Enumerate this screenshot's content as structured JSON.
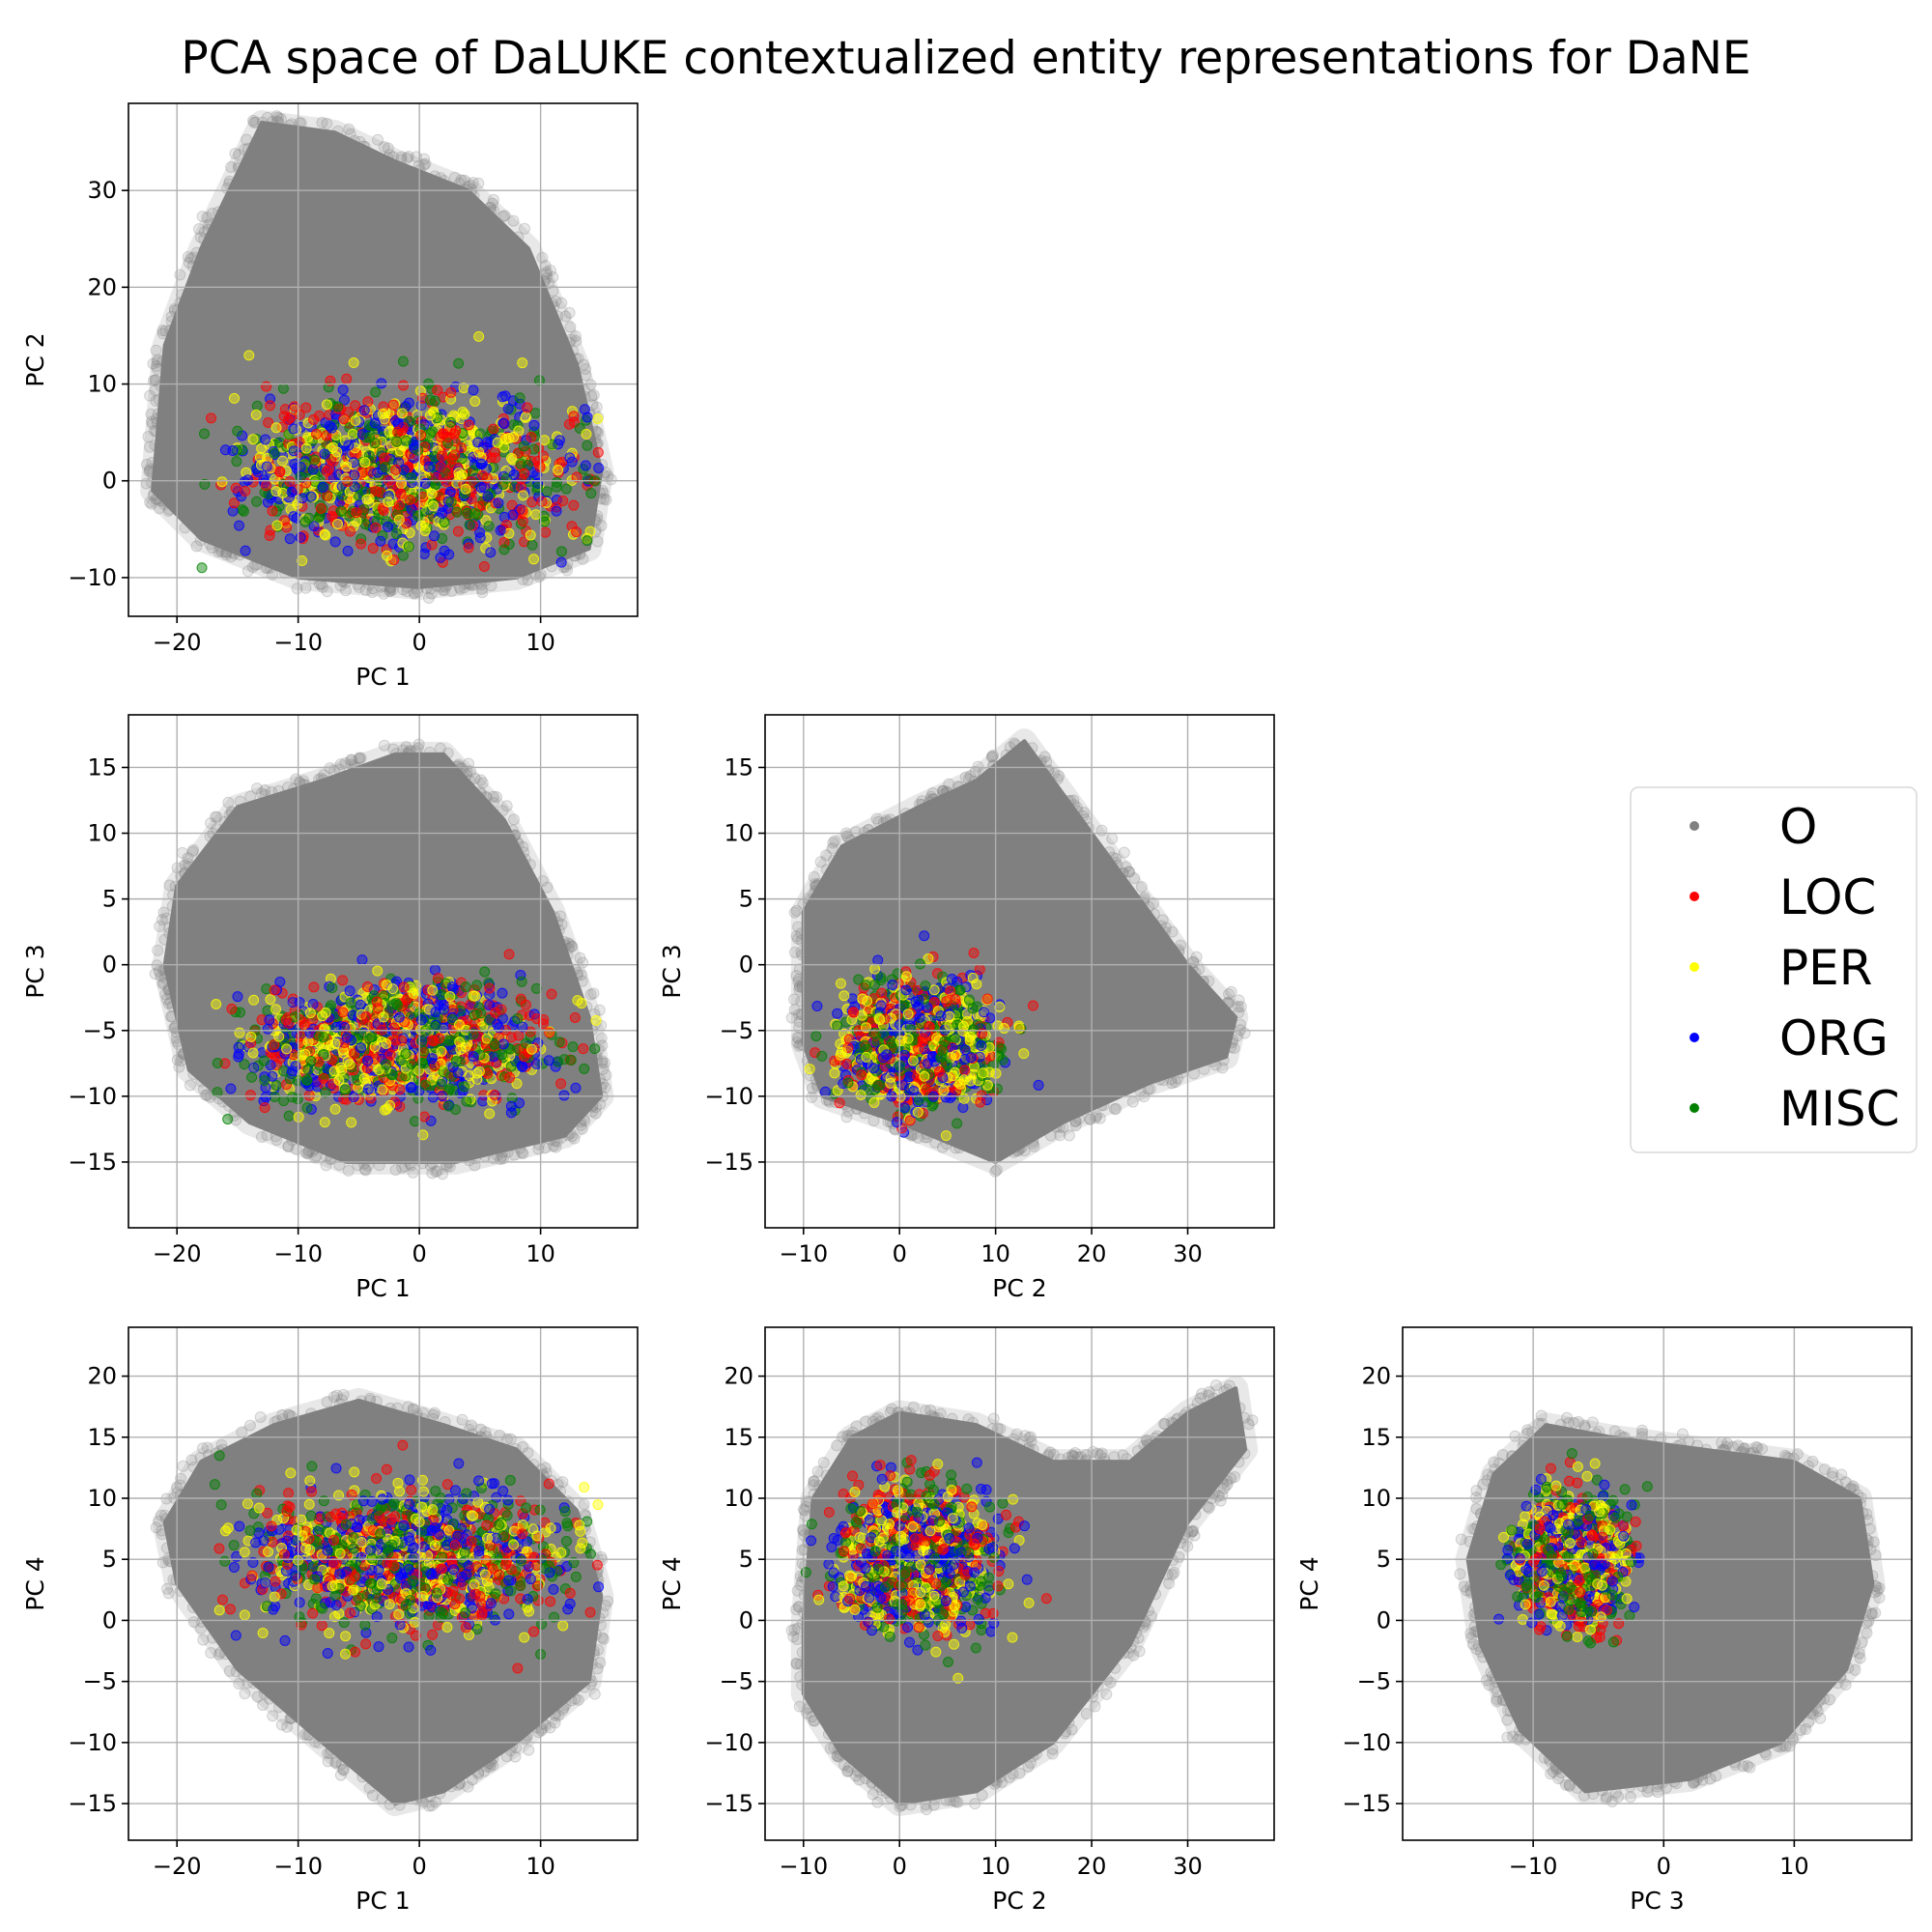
{
  "title": "PCA space of DaLUKE contextualized entity representations for DaNE",
  "colors": {
    "O": "#808080",
    "LOC": "#ff0000",
    "PER": "#ffff00",
    "ORG": "#0000ff",
    "MISC": "#008000",
    "grid": "#b0b0b0"
  },
  "legend": {
    "placement": "right",
    "items": [
      {
        "label": "O",
        "color": "#808080"
      },
      {
        "label": "LOC",
        "color": "#ff0000"
      },
      {
        "label": "PER",
        "color": "#ffff00"
      },
      {
        "label": "ORG",
        "color": "#0000ff"
      },
      {
        "label": "MISC",
        "color": "#008000"
      }
    ]
  },
  "chart_data": [
    {
      "type": "scatter",
      "xlabel": "PC 1",
      "ylabel": "PC 2",
      "xlim": [
        -24,
        18
      ],
      "ylim": [
        -14,
        39
      ],
      "xticks": [
        -20,
        -10,
        0,
        10
      ],
      "yticks": [
        -10,
        0,
        10,
        20,
        30
      ],
      "xtick_labels": [
        "−20",
        "−10",
        "0",
        "10"
      ],
      "ytick_labels": [
        "−10",
        "0",
        "10",
        "20",
        "30"
      ],
      "grid": true,
      "o_hull": [
        [
          -22,
          -1
        ],
        [
          -21,
          14
        ],
        [
          -18,
          24
        ],
        [
          -13,
          37
        ],
        [
          -7,
          36
        ],
        [
          -2,
          33
        ],
        [
          4,
          30
        ],
        [
          9,
          24
        ],
        [
          13,
          12
        ],
        [
          15,
          1
        ],
        [
          14,
          -7
        ],
        [
          8,
          -10
        ],
        [
          0,
          -11
        ],
        [
          -10,
          -10
        ],
        [
          -18,
          -6
        ]
      ],
      "entity_region": {
        "center": [
          -1,
          1
        ],
        "spread": [
          12,
          7
        ],
        "x_range": [
          -18,
          15
        ],
        "y_range": [
          -9,
          24
        ]
      },
      "series": [
        {
          "name": "O",
          "description": "dense cloud of non-entity tokens"
        },
        {
          "name": "LOC"
        },
        {
          "name": "PER"
        },
        {
          "name": "ORG"
        },
        {
          "name": "MISC"
        }
      ]
    },
    {
      "type": "scatter",
      "xlabel": "PC 1",
      "ylabel": "PC 3",
      "xlim": [
        -24,
        18
      ],
      "ylim": [
        -20,
        19
      ],
      "xticks": [
        -20,
        -10,
        0,
        10
      ],
      "yticks": [
        -15,
        -10,
        -5,
        0,
        5,
        10,
        15
      ],
      "xtick_labels": [
        "−20",
        "−10",
        "0",
        "10"
      ],
      "ytick_labels": [
        "−15",
        "−10",
        "−5",
        "0",
        "5",
        "10",
        "15"
      ],
      "grid": true,
      "o_hull": [
        [
          -21,
          0
        ],
        [
          -20,
          6
        ],
        [
          -15,
          12
        ],
        [
          -8,
          14
        ],
        [
          -2,
          16
        ],
        [
          2,
          16
        ],
        [
          7,
          11
        ],
        [
          11,
          4
        ],
        [
          14,
          -4
        ],
        [
          15,
          -10
        ],
        [
          12,
          -13
        ],
        [
          3,
          -15
        ],
        [
          -6,
          -15
        ],
        [
          -14,
          -12
        ],
        [
          -19,
          -8
        ]
      ],
      "entity_region": {
        "center": [
          -2,
          -6
        ],
        "spread": [
          11,
          4
        ],
        "x_range": [
          -17,
          15
        ],
        "y_range": [
          -13,
          4
        ]
      },
      "series": [
        {
          "name": "O"
        },
        {
          "name": "LOC"
        },
        {
          "name": "PER"
        },
        {
          "name": "ORG"
        },
        {
          "name": "MISC"
        }
      ]
    },
    {
      "type": "scatter",
      "xlabel": "PC 2",
      "ylabel": "PC 3",
      "xlim": [
        -14,
        39
      ],
      "ylim": [
        -20,
        19
      ],
      "xticks": [
        -10,
        0,
        10,
        20,
        30
      ],
      "yticks": [
        -15,
        -10,
        -5,
        0,
        5,
        10,
        15
      ],
      "xtick_labels": [
        "−10",
        "0",
        "10",
        "20",
        "30"
      ],
      "ytick_labels": [
        "−15",
        "−10",
        "−5",
        "0",
        "5",
        "10",
        "15"
      ],
      "grid": true,
      "o_hull": [
        [
          -10,
          -6
        ],
        [
          -10,
          4
        ],
        [
          -6,
          9
        ],
        [
          2,
          12
        ],
        [
          8,
          14
        ],
        [
          13,
          17
        ],
        [
          18,
          12
        ],
        [
          24,
          6
        ],
        [
          30,
          0
        ],
        [
          35,
          -4
        ],
        [
          34,
          -7
        ],
        [
          26,
          -9
        ],
        [
          17,
          -12
        ],
        [
          10,
          -15
        ],
        [
          0,
          -12
        ],
        [
          -8,
          -10
        ]
      ],
      "entity_region": {
        "center": [
          2,
          -6
        ],
        "spread": [
          7,
          4
        ],
        "x_range": [
          -10,
          18
        ],
        "y_range": [
          -13,
          3
        ]
      },
      "series": [
        {
          "name": "O"
        },
        {
          "name": "LOC"
        },
        {
          "name": "PER"
        },
        {
          "name": "ORG"
        },
        {
          "name": "MISC"
        }
      ]
    },
    {
      "type": "scatter",
      "xlabel": "PC 1",
      "ylabel": "PC 4",
      "xlim": [
        -24,
        18
      ],
      "ylim": [
        -18,
        24
      ],
      "xticks": [
        -20,
        -10,
        0,
        10
      ],
      "yticks": [
        -15,
        -10,
        -5,
        0,
        5,
        10,
        15,
        20
      ],
      "xtick_labels": [
        "−20",
        "−10",
        "0",
        "10"
      ],
      "ytick_labels": [
        "−15",
        "−10",
        "−5",
        "0",
        "5",
        "10",
        "15",
        "20"
      ],
      "grid": true,
      "o_hull": [
        [
          -21,
          8
        ],
        [
          -18,
          13
        ],
        [
          -12,
          16
        ],
        [
          -5,
          18
        ],
        [
          2,
          16
        ],
        [
          8,
          14
        ],
        [
          13,
          9
        ],
        [
          15,
          2
        ],
        [
          14,
          -5
        ],
        [
          8,
          -10
        ],
        [
          2,
          -14
        ],
        [
          -2,
          -15
        ],
        [
          -8,
          -10
        ],
        [
          -15,
          -4
        ],
        [
          -20,
          3
        ]
      ],
      "entity_region": {
        "center": [
          -1,
          5
        ],
        "spread": [
          12,
          5
        ],
        "x_range": [
          -17,
          15
        ],
        "y_range": [
          -8,
          18
        ]
      },
      "series": [
        {
          "name": "O"
        },
        {
          "name": "LOC"
        },
        {
          "name": "PER"
        },
        {
          "name": "ORG"
        },
        {
          "name": "MISC"
        }
      ]
    },
    {
      "type": "scatter",
      "xlabel": "PC 2",
      "ylabel": "PC 4",
      "xlim": [
        -14,
        39
      ],
      "ylim": [
        -18,
        24
      ],
      "xticks": [
        -10,
        0,
        10,
        20,
        30
      ],
      "yticks": [
        -15,
        -10,
        -5,
        0,
        5,
        10,
        15,
        20
      ],
      "xtick_labels": [
        "−10",
        "0",
        "10",
        "20",
        "30"
      ],
      "ytick_labels": [
        "−15",
        "−10",
        "−5",
        "0",
        "5",
        "10",
        "15",
        "20"
      ],
      "grid": true,
      "o_hull": [
        [
          -10,
          0
        ],
        [
          -9,
          10
        ],
        [
          -5,
          15
        ],
        [
          0,
          17
        ],
        [
          8,
          16
        ],
        [
          16,
          13
        ],
        [
          24,
          13
        ],
        [
          30,
          17
        ],
        [
          35,
          19
        ],
        [
          36,
          14
        ],
        [
          30,
          8
        ],
        [
          24,
          -2
        ],
        [
          16,
          -10
        ],
        [
          8,
          -14
        ],
        [
          0,
          -15
        ],
        [
          -6,
          -11
        ],
        [
          -10,
          -6
        ]
      ],
      "entity_region": {
        "center": [
          2,
          5
        ],
        "spread": [
          7,
          5
        ],
        "x_range": [
          -10,
          18
        ],
        "y_range": [
          -8,
          18
        ]
      },
      "series": [
        {
          "name": "O"
        },
        {
          "name": "LOC"
        },
        {
          "name": "PER"
        },
        {
          "name": "ORG"
        },
        {
          "name": "MISC"
        }
      ]
    },
    {
      "type": "scatter",
      "xlabel": "PC 3",
      "ylabel": "PC 4",
      "xlim": [
        -20,
        19
      ],
      "ylim": [
        -18,
        24
      ],
      "xticks": [
        -10,
        0,
        10
      ],
      "yticks": [
        -15,
        -10,
        -5,
        0,
        5,
        10,
        15,
        20
      ],
      "xtick_labels": [
        "−10",
        "0",
        "10"
      ],
      "ytick_labels": [
        "−15",
        "−10",
        "−5",
        "0",
        "5",
        "10",
        "15",
        "20"
      ],
      "grid": true,
      "o_hull": [
        [
          -15,
          5
        ],
        [
          -13,
          12
        ],
        [
          -9,
          16
        ],
        [
          -4,
          15
        ],
        [
          3,
          14
        ],
        [
          10,
          13
        ],
        [
          15,
          10
        ],
        [
          16,
          3
        ],
        [
          14,
          -4
        ],
        [
          9,
          -10
        ],
        [
          2,
          -13
        ],
        [
          -6,
          -14
        ],
        [
          -11,
          -9
        ],
        [
          -14,
          -2
        ]
      ],
      "entity_region": {
        "center": [
          -7,
          5
        ],
        "spread": [
          3.5,
          4.5
        ],
        "x_range": [
          -13,
          4
        ],
        "y_range": [
          -8,
          17
        ]
      },
      "series": [
        {
          "name": "O"
        },
        {
          "name": "LOC"
        },
        {
          "name": "PER"
        },
        {
          "name": "ORG"
        },
        {
          "name": "MISC"
        }
      ]
    }
  ]
}
